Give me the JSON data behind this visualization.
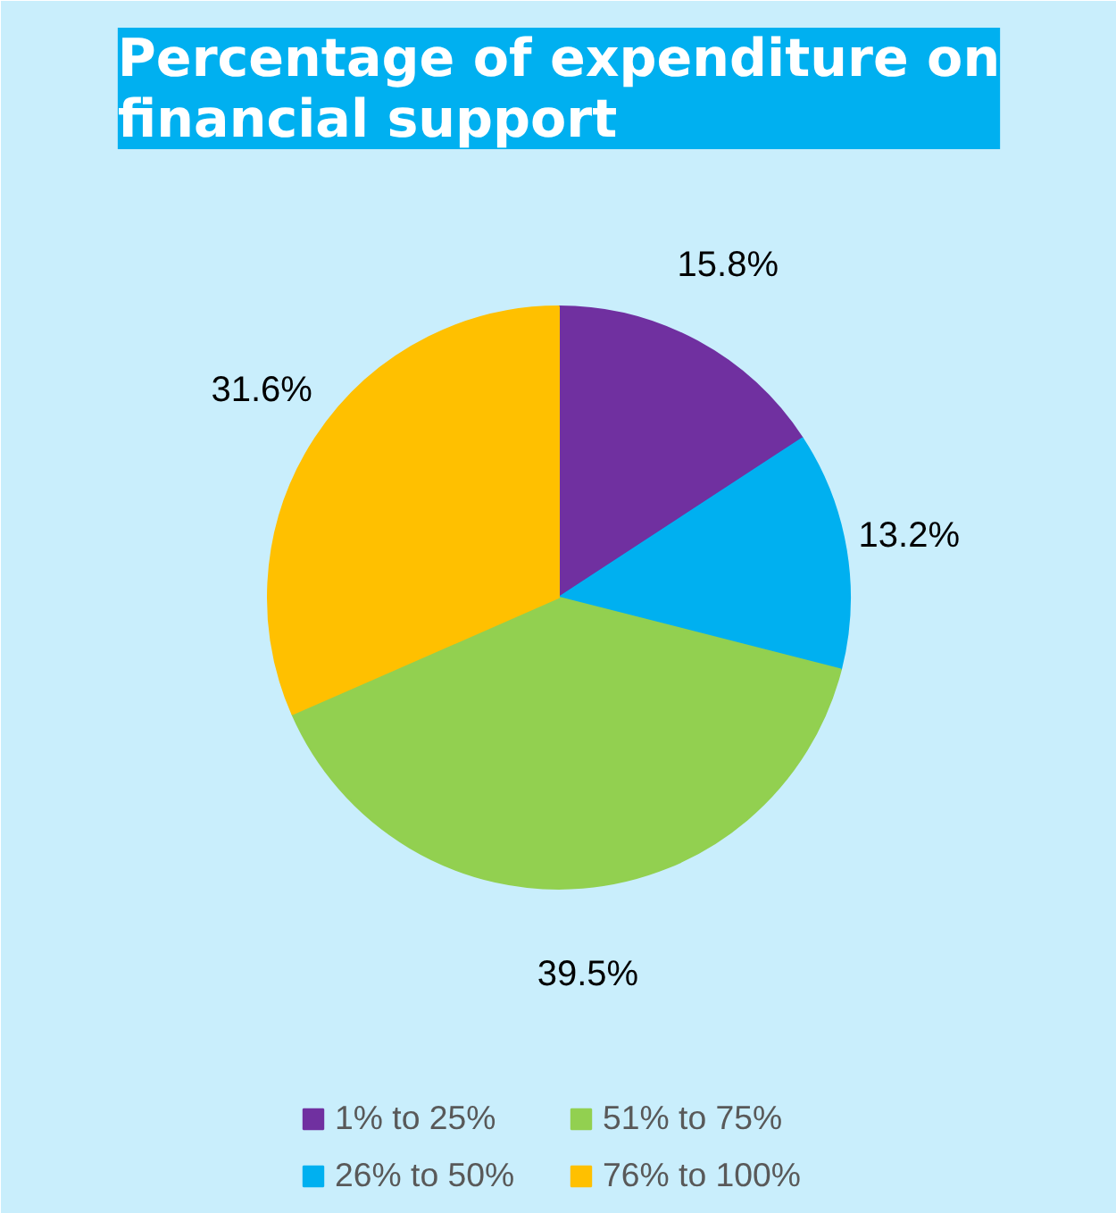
{
  "chart_data": {
    "type": "pie",
    "title": "Percentage of expenditure on financial support",
    "categories": [
      "1% to 25%",
      "26% to 50%",
      "51% to 75%",
      "76% to 100%"
    ],
    "values": [
      15.8,
      13.2,
      39.5,
      31.6
    ],
    "value_labels": [
      "15.8%",
      "13.2%",
      "39.5%",
      "31.6%"
    ],
    "colors": [
      "#7030a0",
      "#00b0f0",
      "#92d050",
      "#ffc000"
    ],
    "legend": "bottom"
  }
}
